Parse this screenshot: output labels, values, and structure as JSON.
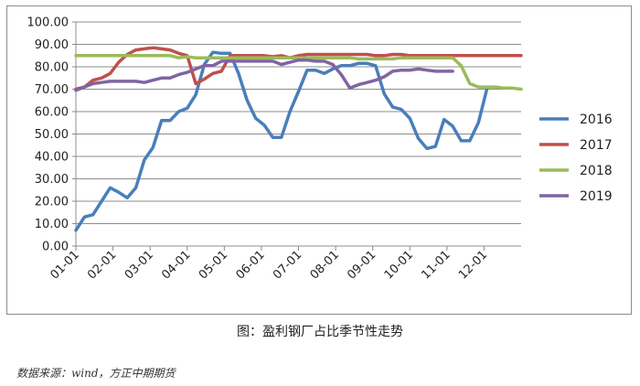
{
  "chart_data": {
    "type": "line",
    "title": "",
    "xlabel": "",
    "ylabel": "",
    "ylim": [
      0,
      100
    ],
    "ytick_labels": [
      "0.00",
      "10.00",
      "20.00",
      "30.00",
      "40.00",
      "50.00",
      "60.00",
      "70.00",
      "80.00",
      "90.00",
      "100.00"
    ],
    "x_ticks": [
      "01-01",
      "02-01",
      "03-01",
      "04-01",
      "05-01",
      "06-01",
      "07-01",
      "08-01",
      "09-01",
      "10-01",
      "11-01",
      "12-01"
    ],
    "xlim": [
      1,
      53
    ],
    "grid": "horizontal",
    "legend_position": "right",
    "series": [
      {
        "name": "2016",
        "color": "#4a7ebb",
        "x": [
          1,
          2,
          3,
          4,
          5,
          6,
          7,
          8,
          9,
          10,
          11,
          12,
          13,
          14,
          15,
          16,
          17,
          18,
          19,
          20,
          21,
          22,
          23,
          24,
          25,
          26,
          27,
          28,
          29,
          30,
          31,
          32,
          33,
          34,
          35,
          36,
          37,
          38,
          39,
          40,
          41,
          42,
          43,
          44,
          45,
          46,
          47,
          48,
          49,
          50,
          51,
          52,
          53
        ],
        "y": [
          7,
          13,
          14,
          20,
          26,
          24,
          21.5,
          26,
          38.5,
          44,
          56,
          56,
          60,
          61.5,
          67.5,
          81,
          86.5,
          86,
          86,
          77,
          65,
          57,
          54,
          48.5,
          48.5,
          60,
          69,
          78.5,
          78.5,
          77,
          79,
          80.5,
          80.5,
          81.5,
          81.5,
          80.5,
          68,
          62,
          61,
          57,
          48,
          43.5,
          44.5,
          56.5,
          53.5,
          47,
          47,
          55,
          70,
          null,
          null,
          null,
          null
        ]
      },
      {
        "name": "2017",
        "color": "#c0504d",
        "x": [
          1,
          2,
          3,
          4,
          5,
          6,
          7,
          8,
          9,
          10,
          11,
          12,
          13,
          14,
          15,
          16,
          17,
          18,
          19,
          20,
          21,
          22,
          23,
          24,
          25,
          26,
          27,
          28,
          29,
          30,
          31,
          32,
          33,
          34,
          35,
          36,
          37,
          38,
          39,
          40,
          41,
          42,
          43,
          44,
          45,
          46,
          47,
          48,
          49,
          50,
          51,
          52,
          53
        ],
        "y": [
          70,
          71,
          74,
          75,
          77,
          82,
          85.5,
          87.5,
          88,
          88.5,
          88,
          87.5,
          86,
          85,
          72.5,
          74.5,
          77,
          78,
          85,
          85,
          85,
          85,
          85,
          84.5,
          85,
          84,
          85,
          85.5,
          85.5,
          85.5,
          85.5,
          85.5,
          85.5,
          85.5,
          85.5,
          85,
          85,
          85.5,
          85.5,
          85,
          85,
          85,
          85,
          85,
          85,
          85,
          85,
          85,
          85,
          85,
          85,
          85,
          85
        ]
      },
      {
        "name": "2018",
        "color": "#9bbb59",
        "x": [
          1,
          2,
          3,
          4,
          5,
          6,
          7,
          8,
          9,
          10,
          11,
          12,
          13,
          14,
          15,
          16,
          17,
          18,
          19,
          20,
          21,
          22,
          23,
          24,
          25,
          26,
          27,
          28,
          29,
          30,
          31,
          32,
          33,
          34,
          35,
          36,
          37,
          38,
          39,
          40,
          41,
          42,
          43,
          44,
          45,
          46,
          47,
          48,
          49,
          50,
          51,
          52,
          53
        ],
        "y": [
          85,
          85,
          85,
          85,
          85,
          85,
          85,
          85,
          85,
          85,
          85,
          85,
          84,
          84.5,
          84,
          84,
          84,
          84,
          84,
          84,
          84,
          84,
          84,
          84,
          84,
          84,
          84,
          84,
          84,
          84,
          84,
          84,
          84,
          83.5,
          83.5,
          83.5,
          83.5,
          83.5,
          84,
          84,
          84,
          84,
          84,
          84,
          84,
          80.5,
          72.5,
          71,
          71,
          71,
          70.5,
          70.5,
          70
        ]
      },
      {
        "name": "2019",
        "color": "#8064a2",
        "x": [
          1,
          2,
          3,
          4,
          5,
          6,
          7,
          8,
          9,
          10,
          11,
          12,
          13,
          14,
          15,
          16,
          17,
          18,
          19,
          20,
          21,
          22,
          23,
          24,
          25,
          26,
          27,
          28,
          29,
          30,
          31,
          32,
          33,
          34,
          35,
          36,
          37,
          38,
          39,
          40,
          41,
          42,
          43,
          44,
          45,
          46,
          47,
          48,
          49,
          50,
          51,
          52,
          53
        ],
        "y": [
          69.5,
          71,
          72.5,
          73,
          73.5,
          73.5,
          73.5,
          73.5,
          73,
          74,
          75,
          75,
          76.5,
          77.5,
          79,
          80.5,
          80.5,
          82.5,
          82.5,
          82.5,
          82.5,
          82.5,
          82.5,
          82.5,
          81,
          82,
          83,
          83,
          82.5,
          82.5,
          81,
          76.5,
          70.5,
          72,
          73,
          74,
          75.5,
          78,
          78.5,
          78.5,
          79,
          78.5,
          78,
          78,
          78,
          null,
          null,
          null,
          null,
          null,
          null,
          null,
          null
        ]
      }
    ]
  },
  "caption": "图：盈利钢厂占比季节性走势",
  "source": "数据来源：wind，方正中期期货"
}
